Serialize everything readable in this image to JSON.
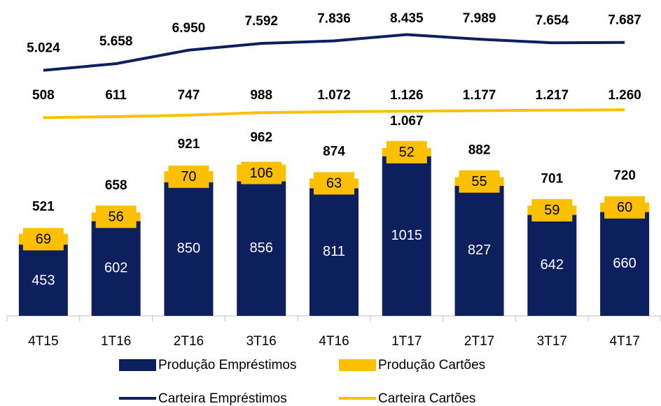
{
  "chart_data": {
    "type": "bar",
    "categories": [
      "4T15",
      "1T16",
      "2T16",
      "3T16",
      "4T16",
      "1T17",
      "2T17",
      "3T17",
      "4T17"
    ],
    "ylim": [
      0,
      1200
    ],
    "y2lim": [
      0,
      10000
    ],
    "series": [
      {
        "name": "Produção Empréstimos",
        "color": "#0d1f5c",
        "values": [
          453,
          602,
          850,
          856,
          811,
          1015,
          827,
          642,
          660
        ]
      },
      {
        "name": "Produção Cartões",
        "color": "#fdc000",
        "values": [
          69,
          56,
          70,
          106,
          63,
          52,
          55,
          59,
          60
        ]
      },
      {
        "name": "Carteira Empréstimos",
        "type": "line",
        "axis": "y2",
        "color": "#0d1f5c",
        "values": [
          5024,
          5658,
          6950,
          7592,
          7836,
          8435,
          7989,
          7654,
          7687
        ],
        "value_labels": [
          "5.024",
          "5.658",
          "6.950",
          "7.592",
          "7.836",
          "8.435",
          "7.989",
          "7.654",
          "7.687"
        ]
      },
      {
        "name": "Carteira Cartões",
        "type": "line",
        "axis": "y2",
        "color": "#fdc000",
        "values": [
          508,
          611,
          747,
          988,
          1072,
          1126,
          1177,
          1217,
          1260
        ],
        "value_labels": [
          "508",
          "611",
          "747",
          "988",
          "1.072",
          "1.126",
          "1.177",
          "1.217",
          "1.260"
        ]
      }
    ],
    "totals": {
      "values": [
        521,
        658,
        921,
        962,
        874,
        1067,
        882,
        701,
        720
      ],
      "value_labels": [
        "521",
        "658",
        "921",
        "962",
        "874",
        "1.067",
        "882",
        "701",
        "720"
      ]
    }
  }
}
